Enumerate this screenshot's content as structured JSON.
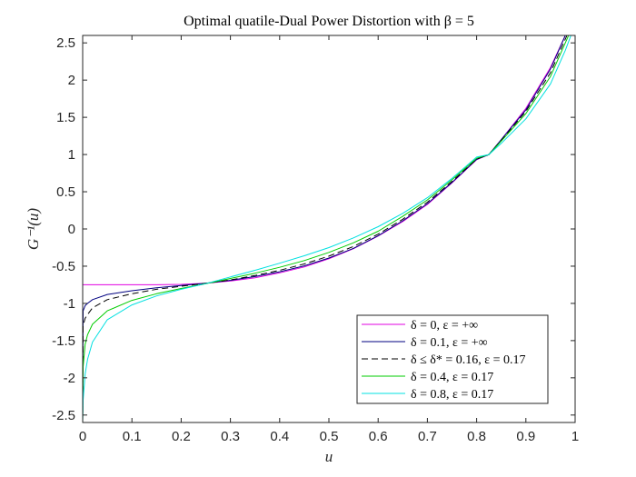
{
  "chart_data": {
    "type": "line",
    "title": "Optimal quatile-Dual Power Distortion with β = 5",
    "xlabel": "u",
    "ylabel": "G⁻¹(u)",
    "xlim": [
      0,
      1
    ],
    "ylim": [
      -2.6,
      2.6
    ],
    "xticks": [
      0,
      0.1,
      0.2,
      0.3,
      0.4,
      0.5,
      0.6,
      0.7,
      0.8,
      0.9,
      1
    ],
    "xtick_labels": [
      "0",
      "0.1",
      "0.2",
      "0.3",
      "0.4",
      "0.5",
      "0.6",
      "0.7",
      "0.8",
      "0.9",
      "1"
    ],
    "yticks": [
      -2.5,
      -2,
      -1.5,
      -1,
      -0.5,
      0,
      0.5,
      1,
      1.5,
      2,
      2.5
    ],
    "ytick_labels": [
      "-2.5",
      "-2",
      "-1.5",
      "-1",
      "-0.5",
      "0",
      "0.5",
      "1",
      "1.5",
      "2",
      "2.5"
    ],
    "grid": false,
    "legend_position": "bottom-right",
    "x": [
      0,
      0.001,
      0.005,
      0.01,
      0.02,
      0.05,
      0.1,
      0.15,
      0.2,
      0.25,
      0.3,
      0.35,
      0.4,
      0.45,
      0.5,
      0.55,
      0.6,
      0.65,
      0.7,
      0.75,
      0.8,
      0.825,
      0.85,
      0.9,
      0.95,
      0.98,
      1
    ],
    "series": [
      {
        "name": "δ = 0, ε = +∞",
        "color": "#e000e0",
        "dash": "solid",
        "values": [
          -0.75,
          -0.75,
          -0.75,
          -0.75,
          -0.75,
          -0.75,
          -0.75,
          -0.75,
          -0.745,
          -0.73,
          -0.7,
          -0.655,
          -0.59,
          -0.51,
          -0.4,
          -0.265,
          -0.095,
          0.1,
          0.33,
          0.62,
          0.93,
          1.0,
          1.2,
          1.62,
          2.17,
          2.6,
          2.9
        ]
      },
      {
        "name": "δ = 0.1, ε = +∞",
        "color": "#000080",
        "dash": "solid",
        "values": [
          -2.6,
          -1.1,
          -1.03,
          -1.0,
          -0.95,
          -0.88,
          -0.83,
          -0.79,
          -0.76,
          -0.73,
          -0.69,
          -0.64,
          -0.575,
          -0.495,
          -0.39,
          -0.26,
          -0.09,
          0.11,
          0.34,
          0.625,
          0.935,
          1.0,
          1.2,
          1.6,
          2.15,
          2.6,
          2.9
        ]
      },
      {
        "name": "δ ≤ δ* = 0.16, ε = 0.17",
        "color": "#000000",
        "dash": "dashed",
        "values": [
          -2.6,
          -1.3,
          -1.2,
          -1.15,
          -1.06,
          -0.95,
          -0.87,
          -0.81,
          -0.77,
          -0.73,
          -0.685,
          -0.625,
          -0.555,
          -0.47,
          -0.365,
          -0.235,
          -0.07,
          0.13,
          0.36,
          0.64,
          0.94,
          1.0,
          1.19,
          1.58,
          2.1,
          2.55,
          2.85
        ]
      },
      {
        "name": "δ = 0.4, ε = 0.17",
        "color": "#00cc00",
        "dash": "solid",
        "values": [
          -2.6,
          -1.85,
          -1.55,
          -1.42,
          -1.28,
          -1.1,
          -0.96,
          -0.87,
          -0.8,
          -0.735,
          -0.665,
          -0.595,
          -0.515,
          -0.425,
          -0.315,
          -0.185,
          -0.03,
          0.17,
          0.39,
          0.66,
          0.95,
          1.0,
          1.18,
          1.55,
          2.05,
          2.5,
          2.8
        ]
      },
      {
        "name": "δ = 0.8, ε = 0.17",
        "color": "#00e0e0",
        "dash": "solid",
        "values": [
          -2.6,
          -2.3,
          -1.95,
          -1.75,
          -1.52,
          -1.22,
          -1.02,
          -0.9,
          -0.81,
          -0.735,
          -0.645,
          -0.555,
          -0.46,
          -0.36,
          -0.25,
          -0.12,
          0.03,
          0.21,
          0.42,
          0.68,
          0.965,
          1.0,
          1.15,
          1.48,
          1.95,
          2.4,
          2.75
        ]
      }
    ]
  }
}
